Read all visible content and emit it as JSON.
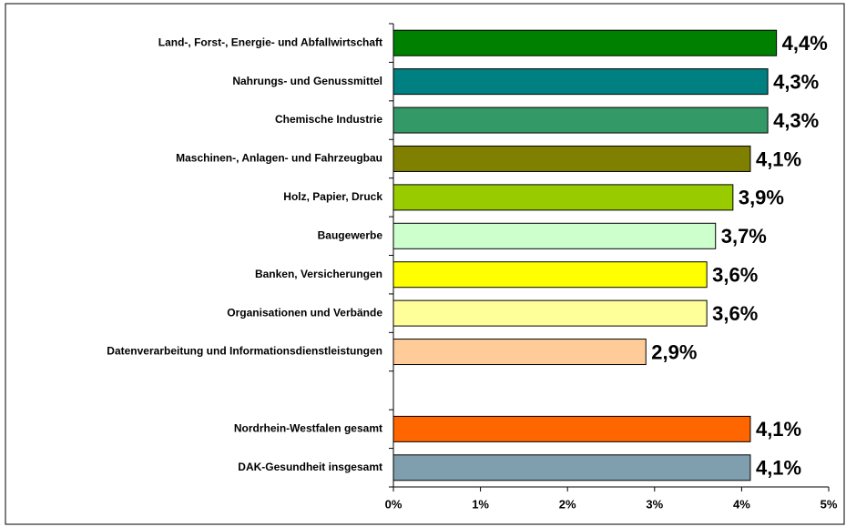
{
  "chart_data": {
    "type": "bar",
    "orientation": "horizontal",
    "categories": [
      "Land-, Forst-,  Energie- und Abfallwirtschaft",
      "Nahrungs- und Genussmittel",
      "Chemische Industrie",
      "Maschinen-, Anlagen- und Fahrzeugbau",
      "Holz, Papier, Druck",
      "Baugewerbe",
      "Banken, Versicherungen",
      "Organisationen und Verbände",
      "Datenverarbeitung und Informationsdienstleistungen",
      null,
      "Nordrhein-Westfalen gesamt",
      "DAK-Gesundheit insgesamt"
    ],
    "values": [
      4.4,
      4.3,
      4.3,
      4.1,
      3.9,
      3.7,
      3.6,
      3.6,
      2.9,
      null,
      4.1,
      4.1
    ],
    "value_labels": [
      "4,4%",
      "4,3%",
      "4,3%",
      "4,1%",
      "3,9%",
      "3,7%",
      "3,6%",
      "3,6%",
      "2,9%",
      null,
      "4,1%",
      "4,1%"
    ],
    "colors": [
      "#008000",
      "#008080",
      "#339966",
      "#808000",
      "#99cc00",
      "#ccffcc",
      "#ffff00",
      "#ffff99",
      "#ffcc99",
      null,
      "#ff6600",
      "#7f9fae"
    ],
    "xlim": [
      0,
      5
    ],
    "xticks": [
      {
        "value": 0,
        "label": "0%"
      },
      {
        "value": 1,
        "label": "1%"
      },
      {
        "value": 2,
        "label": "2%"
      },
      {
        "value": 3,
        "label": "3%"
      },
      {
        "value": 4,
        "label": "4%"
      },
      {
        "value": 5,
        "label": "5%"
      }
    ]
  }
}
